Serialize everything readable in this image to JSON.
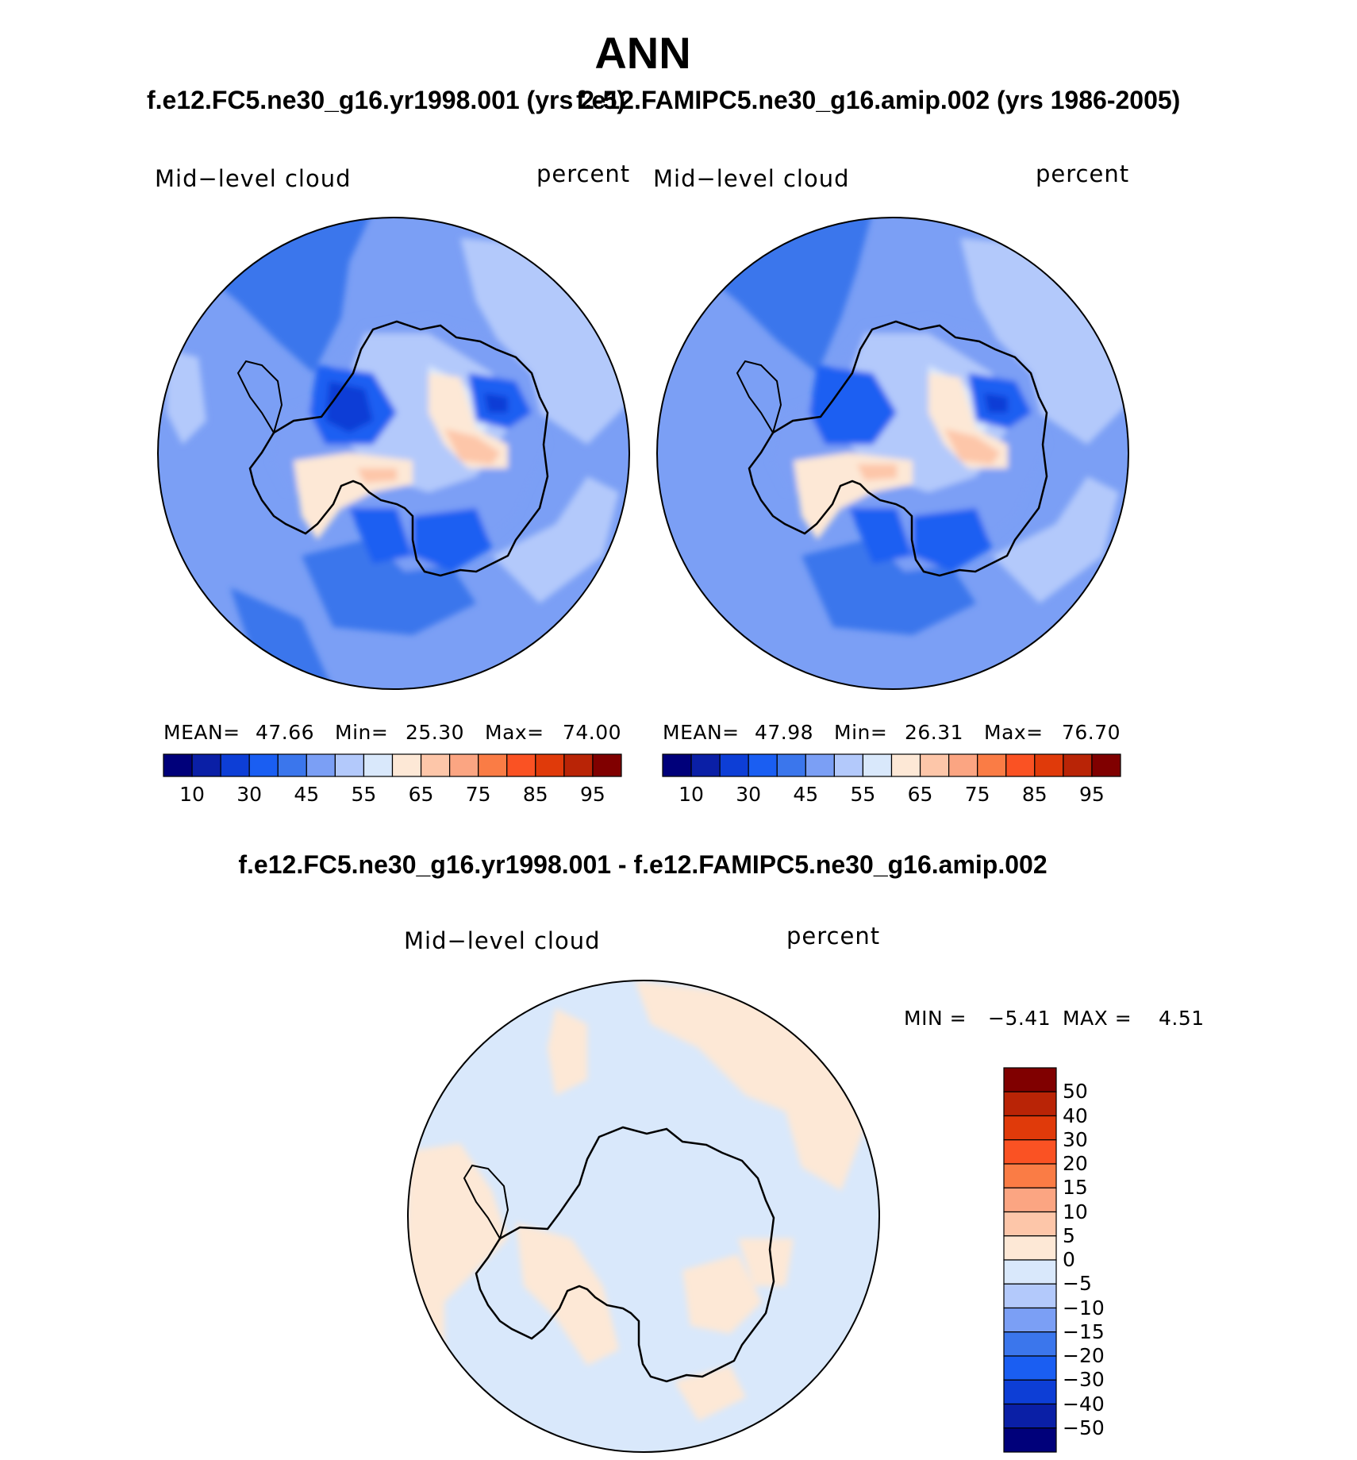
{
  "title": "ANN",
  "panels": [
    {
      "subtitle": "f.e12.FC5.ne30_g16.yr1998.001 (yrs 2-5)",
      "variable": "Mid−level cloud",
      "units": "percent",
      "stats": {
        "mean_label": "MEAN=",
        "mean": "47.66",
        "min_label": "Min=",
        "min": "25.30",
        "max_label": "Max=",
        "max": "74.00"
      }
    },
    {
      "subtitle": "f.e12.FAMIPC5.ne30_g16.amip.002 (yrs 1986-2005)",
      "variable": "Mid−level cloud",
      "units": "percent",
      "stats": {
        "mean_label": "MEAN=",
        "mean": "47.98",
        "min_label": "Min=",
        "min": "26.31",
        "max_label": "Max=",
        "max": "76.70"
      }
    }
  ],
  "field_colorbar": {
    "colors": [
      "#00007a",
      "#0a1fa6",
      "#0d3ed6",
      "#1a5ef2",
      "#3b76ec",
      "#7b9ff5",
      "#b3c9fb",
      "#d9e8fb",
      "#fde8d6",
      "#fdc6a9",
      "#fba582",
      "#fa7c45",
      "#fa5223",
      "#e03a0a",
      "#b92406",
      "#800000"
    ],
    "tick_labels": [
      "10",
      "30",
      "45",
      "55",
      "65",
      "75",
      "85",
      "95"
    ]
  },
  "difference": {
    "title": "f.e12.FC5.ne30_g16.yr1998.001 - f.e12.FAMIPC5.ne30_g16.amip.002",
    "variable": "Mid−level cloud",
    "units": "percent",
    "stats": {
      "min_label": "MIN =",
      "min": "−5.41",
      "max_label": "MAX =",
      "max": "4.51"
    },
    "colorbar": {
      "colors_top_to_bottom": [
        "#800000",
        "#b92406",
        "#e03a0a",
        "#fa5223",
        "#fa7c45",
        "#fba582",
        "#fdc6a9",
        "#fde8d6",
        "#d9e8fb",
        "#b3c9fb",
        "#7b9ff5",
        "#3b76ec",
        "#1a5ef2",
        "#0d3ed6",
        "#0a1fa6",
        "#00007a"
      ],
      "tick_labels": [
        "50",
        "40",
        "30",
        "20",
        "15",
        "10",
        "5",
        "0",
        "−5",
        "−10",
        "−15",
        "−20",
        "−30",
        "−40",
        "−50"
      ]
    }
  }
}
